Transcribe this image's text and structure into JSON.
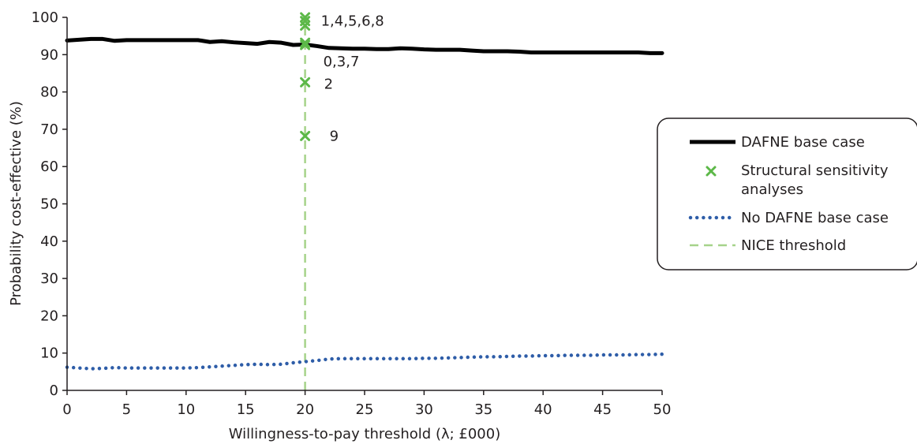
{
  "chart_data": {
    "type": "line",
    "title": "",
    "xlabel": "Willingness-to-pay threshold (λ; £000)",
    "ylabel": "Probability cost-effective (%)",
    "xlim": [
      0,
      50
    ],
    "ylim": [
      0,
      100
    ],
    "x_ticks": [
      "0",
      "5",
      "10",
      "15",
      "20",
      "25",
      "30",
      "35",
      "40",
      "45",
      "50"
    ],
    "y_ticks": [
      "0",
      "10",
      "20",
      "30",
      "40",
      "50",
      "60",
      "70",
      "80",
      "90",
      "100"
    ],
    "grid": false,
    "legend_position": "right",
    "series": [
      {
        "name": "DAFNE base case",
        "style": "solid",
        "color": "#000000",
        "x": [
          0,
          1,
          2,
          3,
          4,
          5,
          6,
          7,
          8,
          9,
          10,
          11,
          12,
          13,
          14,
          15,
          16,
          17,
          18,
          19,
          20,
          21,
          22,
          23,
          24,
          25,
          26,
          27,
          28,
          29,
          30,
          31,
          32,
          33,
          34,
          35,
          36,
          37,
          38,
          39,
          40,
          41,
          42,
          43,
          44,
          45,
          46,
          47,
          48,
          49,
          50
        ],
        "y": [
          93.8,
          94.0,
          94.2,
          94.2,
          93.7,
          93.9,
          93.9,
          93.9,
          93.9,
          93.9,
          93.9,
          93.9,
          93.4,
          93.6,
          93.3,
          93.1,
          92.9,
          93.4,
          93.2,
          92.6,
          92.7,
          92.3,
          91.8,
          91.7,
          91.6,
          91.6,
          91.5,
          91.5,
          91.7,
          91.6,
          91.4,
          91.3,
          91.3,
          91.3,
          91.1,
          90.9,
          90.9,
          90.9,
          90.8,
          90.6,
          90.6,
          90.6,
          90.6,
          90.6,
          90.6,
          90.6,
          90.6,
          90.6,
          90.6,
          90.4,
          90.4
        ]
      },
      {
        "name": "No DAFNE base case",
        "style": "dotted",
        "color": "#2e5da8",
        "x": [
          0,
          1,
          2,
          3,
          4,
          5,
          6,
          7,
          8,
          9,
          10,
          11,
          12,
          13,
          14,
          15,
          16,
          17,
          18,
          19,
          20,
          21,
          22,
          23,
          24,
          25,
          26,
          27,
          28,
          29,
          30,
          31,
          32,
          33,
          34,
          35,
          36,
          37,
          38,
          39,
          40,
          41,
          42,
          43,
          44,
          45,
          46,
          47,
          48,
          49,
          50
        ],
        "y": [
          6.2,
          6.0,
          5.8,
          5.9,
          6.1,
          6.0,
          6.0,
          6.0,
          6.0,
          6.0,
          6.0,
          6.1,
          6.3,
          6.5,
          6.7,
          6.9,
          7.0,
          6.9,
          7.0,
          7.4,
          7.7,
          8.0,
          8.4,
          8.5,
          8.5,
          8.5,
          8.5,
          8.5,
          8.5,
          8.5,
          8.6,
          8.6,
          8.7,
          8.8,
          8.9,
          9.0,
          9.0,
          9.1,
          9.2,
          9.2,
          9.3,
          9.3,
          9.4,
          9.4,
          9.4,
          9.5,
          9.5,
          9.5,
          9.6,
          9.6,
          9.7
        ]
      },
      {
        "name": "Structural sensitivity analyses",
        "style": "marker-x",
        "color": "#5cb848",
        "points": [
          {
            "x": 20,
            "y": 100,
            "label": ""
          },
          {
            "x": 20,
            "y": 99.0,
            "label": "1,4,5,6,8"
          },
          {
            "x": 20,
            "y": 97.8,
            "label": ""
          },
          {
            "x": 20,
            "y": 93.2,
            "label": ""
          },
          {
            "x": 20,
            "y": 92.6,
            "label": "0,3,7"
          },
          {
            "x": 20,
            "y": 82.6,
            "label": "2"
          },
          {
            "x": 20,
            "y": 68.2,
            "label": "9"
          }
        ]
      },
      {
        "name": "NICE threshold",
        "style": "dashed",
        "color": "#a6d38a",
        "x": [
          20,
          20
        ],
        "y": [
          0,
          100
        ]
      }
    ]
  }
}
